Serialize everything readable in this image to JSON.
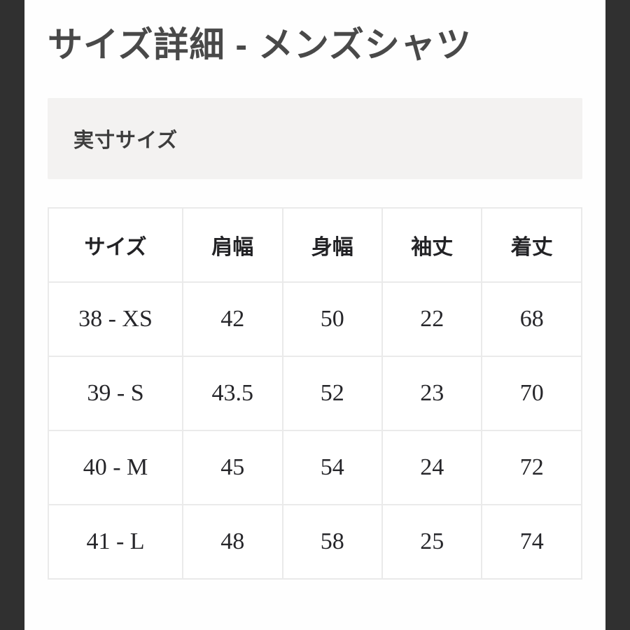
{
  "page": {
    "title": "サイズ詳細 - メンズシャツ"
  },
  "colors": {
    "frame_bar": "#303030",
    "section_background": "#f3f2f1",
    "table_border": "#eaeaea",
    "title_text": "#494949",
    "table_text": "#26262a"
  },
  "section": {
    "heading": "実寸サイズ"
  },
  "size_table": {
    "columns": [
      "サイズ",
      "肩幅",
      "身幅",
      "袖丈",
      "着丈"
    ],
    "rows": [
      [
        "38 - XS",
        "42",
        "50",
        "22",
        "68"
      ],
      [
        "39 - S",
        "43.5",
        "52",
        "23",
        "70"
      ],
      [
        "40 - M",
        "45",
        "54",
        "24",
        "72"
      ],
      [
        "41 - L",
        "48",
        "58",
        "25",
        "74"
      ]
    ]
  }
}
